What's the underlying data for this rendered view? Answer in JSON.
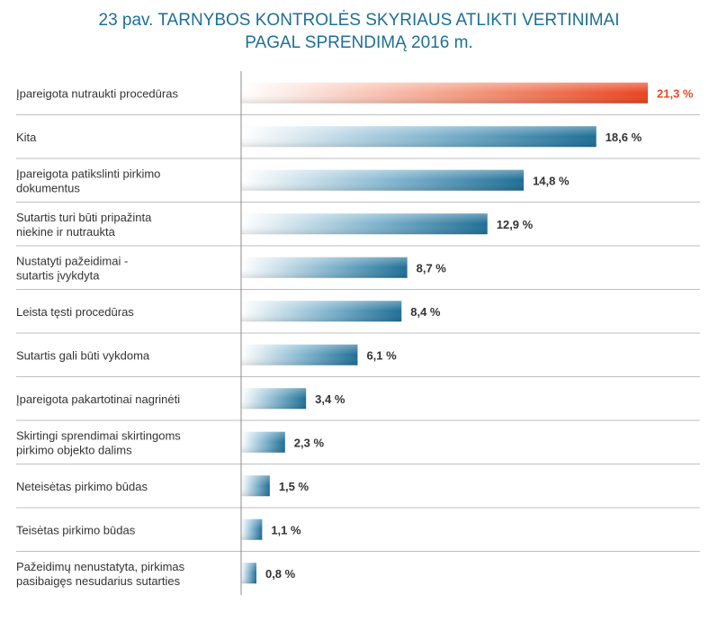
{
  "title_lines": [
    "23 pav. TARNYBOS KONTROLĖS SKYRIAUS ATLIKTI VERTINIMAI",
    "PAGAL SPRENDIMĄ 2016 m."
  ],
  "colors": {
    "title": "#1d6f96",
    "bar_dark": "#1e6e95",
    "bar_light": "#ffffff",
    "highlight_dark": "#e8441f",
    "highlight_light": "#ffffff",
    "highlight_label": "#e8492a",
    "label": "#333333",
    "separator": "#bfbfbf",
    "axis": "#888888"
  },
  "chart_data": {
    "type": "bar",
    "orientation": "horizontal",
    "title": "23 pav. TARNYBOS KONTROLĖS SKYRIAUS ATLIKTI VERTINIMAI PAGAL SPRENDIMĄ 2016 m.",
    "unit": "%",
    "categories": [
      [
        "Įpareigota nutraukti procedūras"
      ],
      [
        "Kita"
      ],
      [
        "Įpareigota patikslinti pirkimo",
        "dokumentus"
      ],
      [
        "Sutartis turi būti pripažinta",
        "niekine ir nutraukta"
      ],
      [
        "Nustatyti pažeidimai -",
        "sutartis įvykdyta"
      ],
      [
        "Leista tęsti procedūras"
      ],
      [
        "Sutartis gali būti vykdoma"
      ],
      [
        "Įpareigota pakartotinai nagrinėti"
      ],
      [
        "Skirtingi sprendimai skirtingoms",
        "pirkimo objekto dalims"
      ],
      [
        "Neteisėtas pirkimo būdas"
      ],
      [
        "Teisėtas pirkimo būdas"
      ],
      [
        "Pažeidimų nenustatyta, pirkimas",
        "pasibaigęs nesudarius sutarties"
      ]
    ],
    "values": [
      21.3,
      18.6,
      14.8,
      12.9,
      8.7,
      8.4,
      6.1,
      3.4,
      2.3,
      1.5,
      1.1,
      0.8
    ],
    "value_labels": [
      "21,3 %",
      "18,6 %",
      "14,8 %",
      "12,9 %",
      "8,7 %",
      "8,4 %",
      "6,1 %",
      "3,4 %",
      "2,3 %",
      "1,5 %",
      "1,1 %",
      "0,8 %"
    ],
    "highlight_index": 0,
    "xlim": [
      0,
      21.3
    ],
    "grid": false,
    "legend": "none"
  }
}
